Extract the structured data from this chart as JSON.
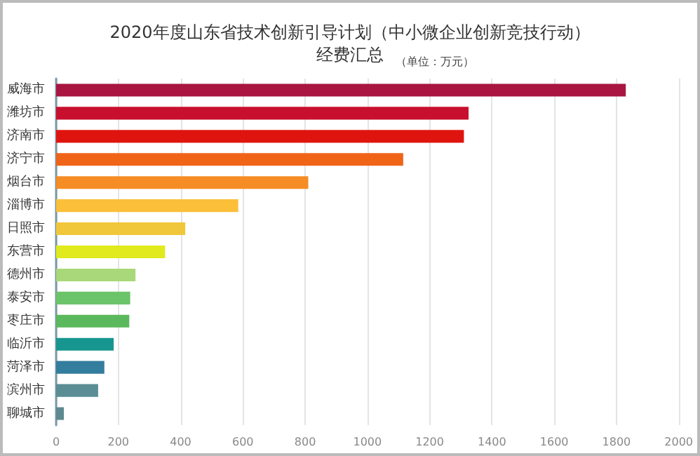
{
  "chart_data": {
    "type": "bar",
    "orientation": "horizontal",
    "title": "2020年度山东省技术创新引导计划（中小微企业创新竞技行动）",
    "subtitle": "经费汇总",
    "annotations": [
      "（单位：万元）"
    ],
    "categories": [
      "威海市",
      "潍坊市",
      "济南市",
      "济宁市",
      "烟台市",
      "淄博市",
      "日照市",
      "东营市",
      "德州市",
      "泰安市",
      "枣庄市",
      "临沂市",
      "菏泽市",
      "滨州市",
      "聊城市"
    ],
    "values": [
      1830,
      1325,
      1310,
      1115,
      810,
      585,
      415,
      350,
      255,
      238,
      235,
      185,
      155,
      135,
      25
    ],
    "colors": [
      "#a81541",
      "#c8102e",
      "#e0140f",
      "#f06418",
      "#f68c24",
      "#fbbf3a",
      "#f0c73a",
      "#e0ea1c",
      "#a9d87a",
      "#6cc46a",
      "#5cb85c",
      "#17968f",
      "#337d9e",
      "#5b8e94",
      "#5e8a8f"
    ],
    "xlim": [
      0,
      2000
    ],
    "xticks": [
      0,
      200,
      400,
      600,
      800,
      1000,
      1200,
      1400,
      1600,
      1800,
      2000
    ],
    "grid": "x"
  }
}
